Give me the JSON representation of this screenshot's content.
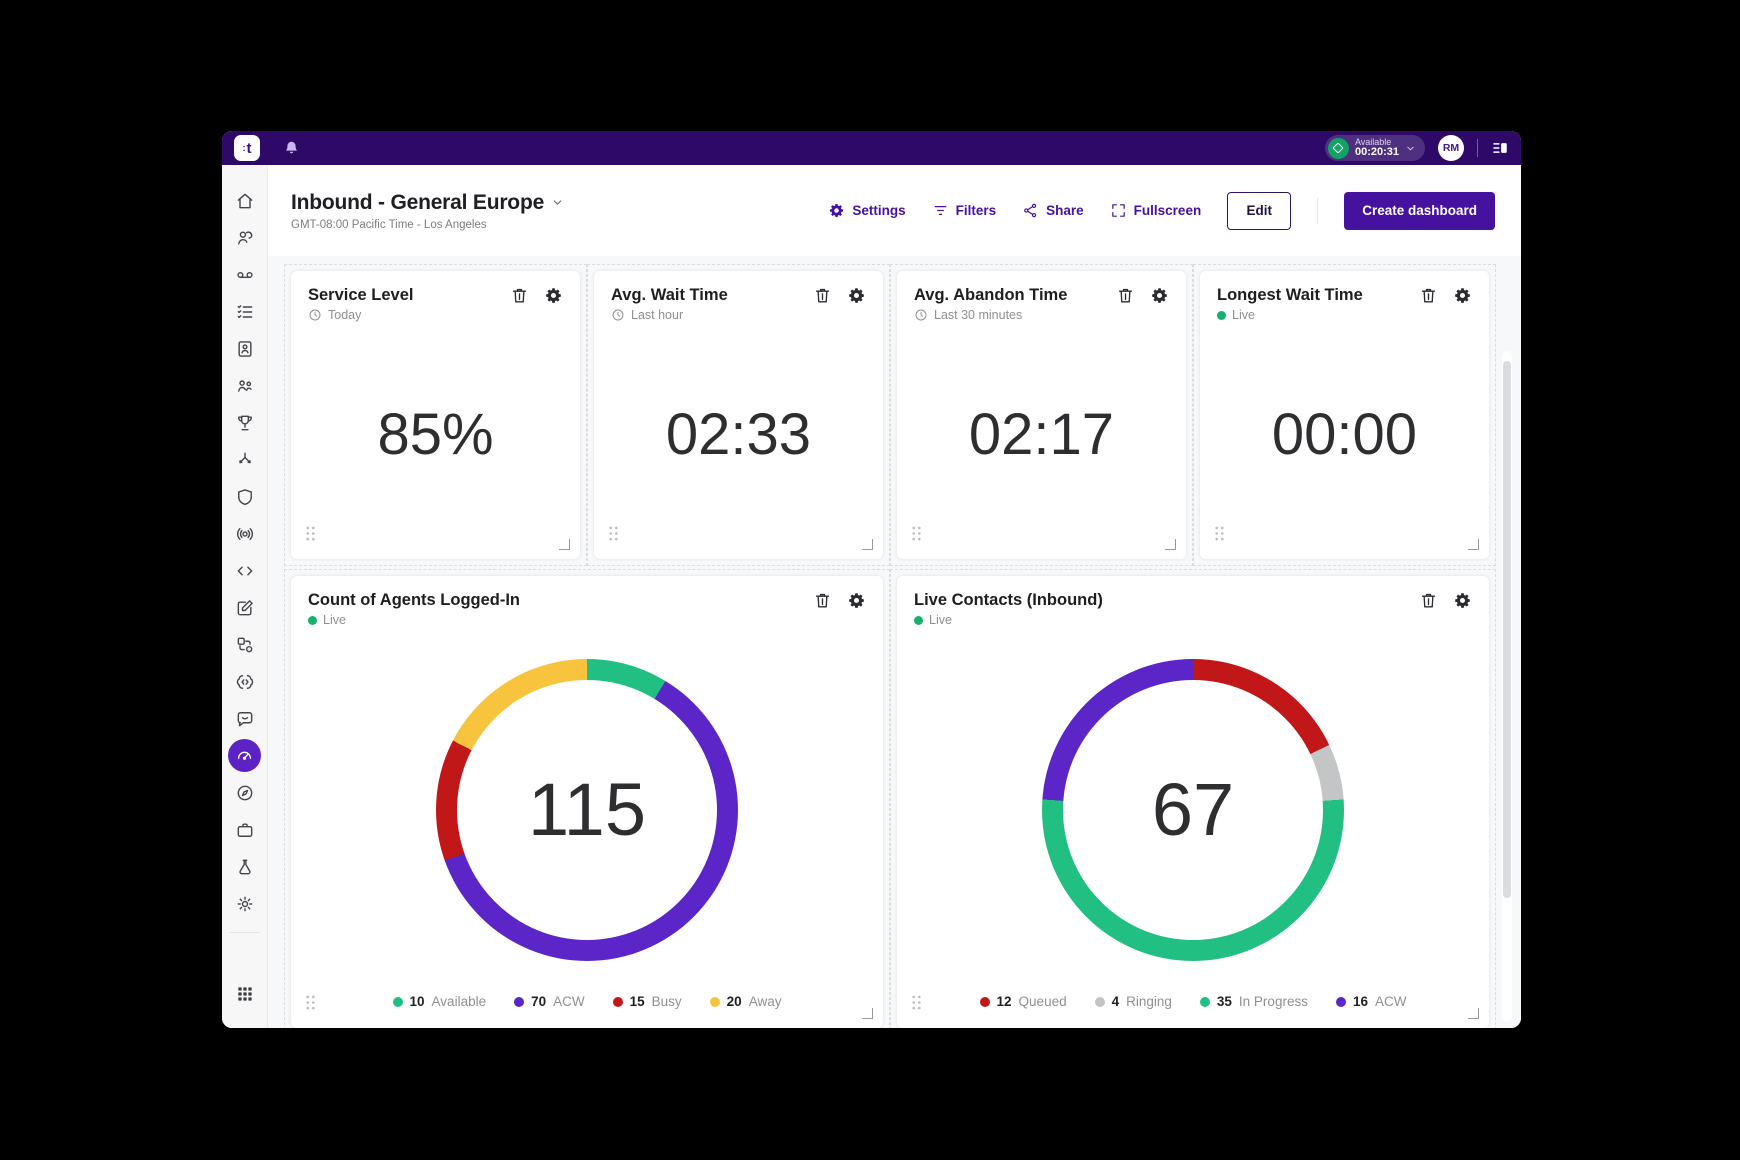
{
  "topbar": {
    "logo_text": "t",
    "status": {
      "label": "Available",
      "timer": "00:20:31"
    },
    "avatar_initials": "RM"
  },
  "header": {
    "title": "Inbound - General Europe",
    "subtitle": "GMT-08:00 Pacific Time - Los Angeles",
    "actions": [
      {
        "label": "Settings",
        "icon": "gear"
      },
      {
        "label": "Filters",
        "icon": "filter"
      },
      {
        "label": "Share",
        "icon": "share"
      },
      {
        "label": "Fullscreen",
        "icon": "fullscreen"
      }
    ],
    "edit_label": "Edit",
    "create_label": "Create dashboard"
  },
  "sidebar": {
    "items": [
      {
        "name": "home",
        "icon": "home"
      },
      {
        "name": "agents",
        "icon": "agent"
      },
      {
        "name": "voicemail",
        "icon": "voicemail"
      },
      {
        "name": "activities",
        "icon": "activities"
      },
      {
        "name": "contacts",
        "icon": "contacts"
      },
      {
        "name": "teams",
        "icon": "teams"
      },
      {
        "name": "gamification",
        "icon": "trophy"
      },
      {
        "name": "flows",
        "icon": "flows"
      },
      {
        "name": "security",
        "icon": "shield"
      },
      {
        "name": "voice-analytics",
        "icon": "voice"
      },
      {
        "name": "developer",
        "icon": "code"
      },
      {
        "name": "compose",
        "icon": "compose"
      },
      {
        "name": "integrations",
        "icon": "integrations"
      },
      {
        "name": "ai-assistant",
        "icon": "ai"
      },
      {
        "name": "conversations",
        "icon": "chat"
      },
      {
        "name": "dashboards",
        "icon": "gauge",
        "active": true
      },
      {
        "name": "explore",
        "icon": "compass"
      },
      {
        "name": "workspace",
        "icon": "briefcase"
      },
      {
        "name": "studio",
        "icon": "flask"
      },
      {
        "name": "settings",
        "icon": "gear-stroke"
      }
    ],
    "apps_item": {
      "name": "apps-launcher",
      "icon": "apps"
    }
  },
  "kpi_cards": [
    {
      "title": "Service Level",
      "period": "Today",
      "period_icon": "clock",
      "value": "85%"
    },
    {
      "title": "Avg. Wait Time",
      "period": "Last hour",
      "period_icon": "clock",
      "value": "02:33"
    },
    {
      "title": "Avg. Abandon Time",
      "period": "Last 30 minutes",
      "period_icon": "clock",
      "value": "02:17"
    },
    {
      "title": "Longest Wait Time",
      "period": "Live",
      "period_icon": "live",
      "value": "00:00"
    }
  ],
  "chart_data": [
    {
      "type": "pie",
      "donut": true,
      "title": "Count of Agents Logged-In",
      "period": "Live",
      "period_icon": "live",
      "total": 115,
      "center_label": "115",
      "legend_position": "bottom",
      "series": [
        {
          "name": "Available",
          "value": 10,
          "color": "#22bf82"
        },
        {
          "name": "ACW",
          "value": 70,
          "color": "#5b25c7"
        },
        {
          "name": "Busy",
          "value": 15,
          "color": "#c11718"
        },
        {
          "name": "Away",
          "value": 20,
          "color": "#f8c43e"
        }
      ]
    },
    {
      "type": "pie",
      "donut": true,
      "title": "Live Contacts (Inbound)",
      "period": "Live",
      "period_icon": "live",
      "total": 67,
      "center_label": "67",
      "legend_position": "bottom",
      "series": [
        {
          "name": "Queued",
          "value": 12,
          "color": "#c11718"
        },
        {
          "name": "Ringing",
          "value": 4,
          "color": "#c3c5c7"
        },
        {
          "name": "In Progress",
          "value": 35,
          "color": "#22bf82"
        },
        {
          "name": "ACW",
          "value": 16,
          "color": "#5b25c7"
        }
      ]
    }
  ],
  "colors": {
    "topbar_bg": "#2e0968",
    "accent_purple": "#45129f",
    "active_nav_bg": "#5c22c4",
    "live_green": "#17b26a",
    "status_green": "#12a364",
    "donut_green": "#22bf82",
    "donut_purple": "#5b25c7",
    "donut_red": "#c11718",
    "donut_yellow": "#f8c43e",
    "donut_gray": "#c3c5c7"
  }
}
